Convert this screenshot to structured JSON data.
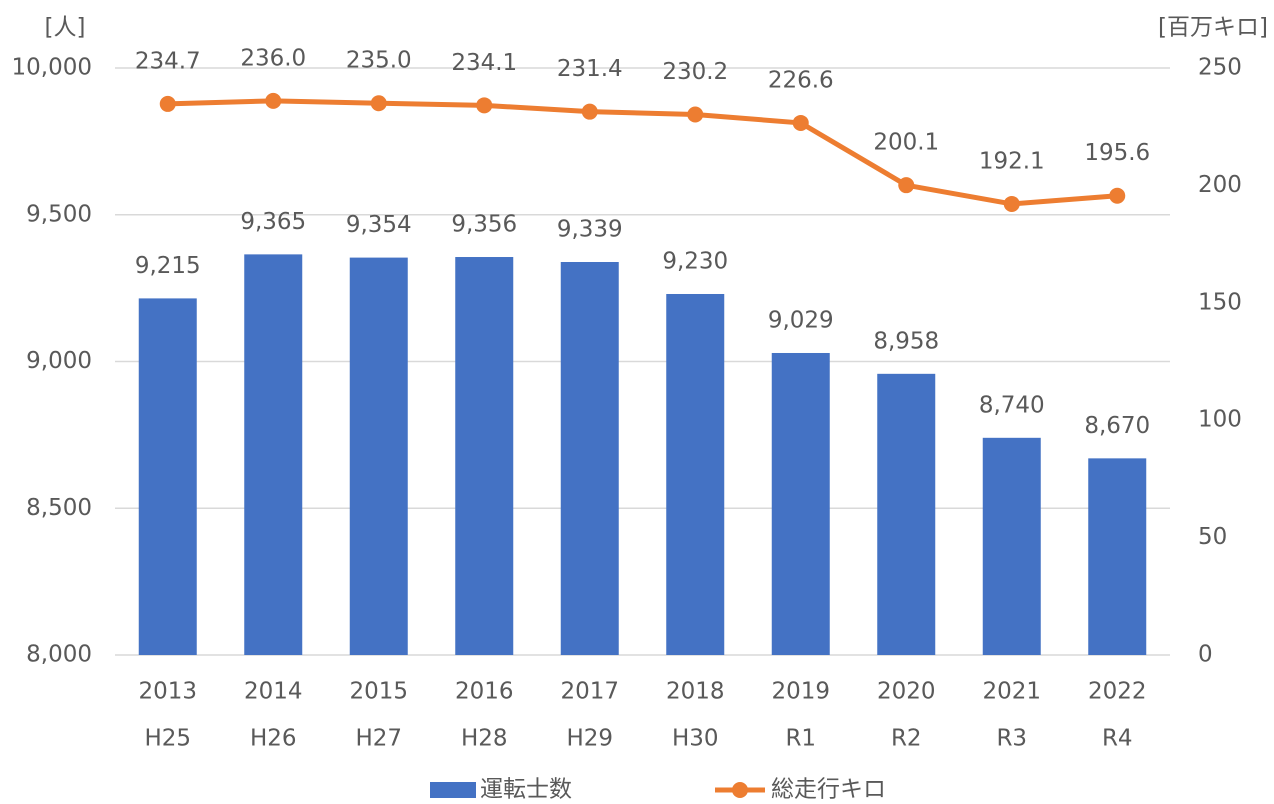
{
  "chart_data": {
    "type": "combo",
    "y_label": "[人]",
    "y2_label": "[百万キロ]",
    "categories": [
      [
        "2013",
        "H25"
      ],
      [
        "2014",
        "H26"
      ],
      [
        "2015",
        "H27"
      ],
      [
        "2016",
        "H28"
      ],
      [
        "2017",
        "H29"
      ],
      [
        "2018",
        "H30"
      ],
      [
        "2019",
        "R1"
      ],
      [
        "2020",
        "R2"
      ],
      [
        "2021",
        "R3"
      ],
      [
        "2022",
        "R4"
      ]
    ],
    "series": [
      {
        "name": "運転士数",
        "type": "bar",
        "color": "#4472c4",
        "values": [
          9215,
          9365,
          9354,
          9356,
          9339,
          9230,
          9029,
          8958,
          8740,
          8670
        ],
        "value_labels": [
          "9,215",
          "9,365",
          "9,354",
          "9,356",
          "9,339",
          "9,230",
          "9,029",
          "8,958",
          "8,740",
          "8,670"
        ]
      },
      {
        "name": "総走行キロ",
        "type": "line",
        "axis": "y2",
        "color": "#ed7d31",
        "values": [
          234.7,
          236.0,
          235.0,
          234.1,
          231.4,
          230.2,
          226.6,
          200.1,
          192.1,
          195.6
        ],
        "value_labels": [
          "234.7",
          "236.0",
          "235.0",
          "234.1",
          "231.4",
          "230.2",
          "226.6",
          "200.1",
          "192.1",
          "195.6"
        ]
      }
    ],
    "ylim": [
      8000,
      10000
    ],
    "yticks": [
      {
        "value": 8000,
        "label": "8,000"
      },
      {
        "value": 8500,
        "label": "8,500"
      },
      {
        "value": 9000,
        "label": "9,000"
      },
      {
        "value": 9500,
        "label": "9,500"
      },
      {
        "value": 10000,
        "label": "10,000"
      }
    ],
    "y2lim": [
      0,
      250
    ],
    "y2ticks": [
      0,
      50,
      100,
      150,
      200,
      250
    ],
    "grid": true,
    "legend": "bottom"
  }
}
